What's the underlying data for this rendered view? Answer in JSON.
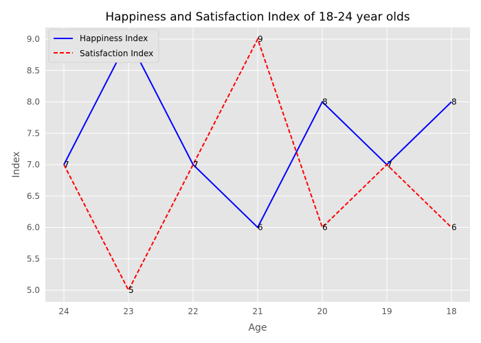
{
  "chart_data": {
    "type": "line",
    "title": "Happiness and Satisfaction Index of 18-24 year olds",
    "xlabel": "Age",
    "ylabel": "Index",
    "categories": [
      "24",
      "23",
      "22",
      "21",
      "20",
      "19",
      "18"
    ],
    "ylim": [
      4.85,
      9.2
    ],
    "yticks": [
      "5.0",
      "5.5",
      "6.0",
      "6.5",
      "7.0",
      "7.5",
      "8.0",
      "8.5",
      "9.0"
    ],
    "grid": true,
    "legend_position": "top-left",
    "series": [
      {
        "name": "Happiness Index",
        "values": [
          7,
          9,
          7,
          6,
          8,
          7,
          8
        ],
        "labels": [
          "7",
          "9",
          "7",
          "6",
          "8",
          "7",
          "8"
        ],
        "color": "#0000ff",
        "style": "solid"
      },
      {
        "name": "Satisfaction Index",
        "values": [
          7,
          5,
          7,
          9,
          6,
          7,
          6
        ],
        "labels": [
          "7",
          "5",
          "7",
          "9",
          "6",
          "7",
          "6"
        ],
        "color": "#ff0000",
        "style": "dashed"
      }
    ],
    "colors": {
      "plot_background": "#e5e5e5",
      "grid": "#ffffff",
      "legend_background": "#e5e5e5"
    }
  }
}
